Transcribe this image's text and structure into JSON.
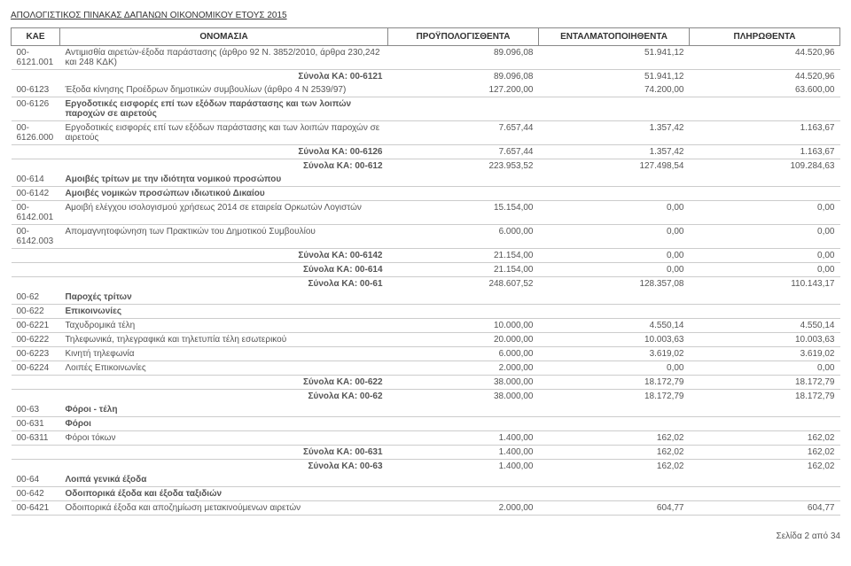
{
  "doc": {
    "title": "ΑΠΟΛΟΓΙΣΤΙΚΟΣ ΠΙΝΑΚΑΣ ΔΑΠΑΝΩΝ ΟΙΚΟΝΟΜΙΚΟΥ ΕΤΟΥΣ 2015",
    "footer": "Σελίδα 2 από 34"
  },
  "columns": {
    "kae": "ΚΑΕ",
    "name": "ΟΝΟΜΑΣΙΑ",
    "budget": "ΠΡΟΫΠΟΛΟΓΙΣΘΕΝΤΑ",
    "committed": "ΕΝΤΑΛΜΑΤΟΠΟΙΗΘΕΝΤΑ",
    "paid": "ΠΛΗΡΩΘΕΝΤΑ"
  },
  "labels": {
    "subtotal_prefix": "Σύνολα ΚΑ: "
  },
  "rows": [
    {
      "type": "line",
      "kae": "00-6121.001",
      "name": "Αντιμισθία αιρετών-έξοδα παράστασης (άρθρο 92 Ν. 3852/2010, άρθρα 230,242 και 248 ΚΔΚ)",
      "c1": "89.096,08",
      "c2": "51.941,12",
      "c3": "44.520,96"
    },
    {
      "type": "subtotal",
      "code": "00-6121",
      "c1": "89.096,08",
      "c2": "51.941,12",
      "c3": "44.520,96"
    },
    {
      "type": "line",
      "kae": "00-6123",
      "name": "Έξοδα κίνησης Προέδρων δημοτικών συμβουλίων (άρθρο 4 Ν 2539/97)",
      "c1": "127.200,00",
      "c2": "74.200,00",
      "c3": "63.600,00"
    },
    {
      "type": "line",
      "kae": "00-6126",
      "name": "Εργοδοτικές εισφορές επί των εξόδων παράστασης και των λοιπών παροχών σε αιρετούς",
      "bold": true
    },
    {
      "type": "line",
      "kae": "00-6126.000",
      "name": "Εργοδοτικές εισφορές επί των εξόδων παράστασης και των λοιπών παροχών σε αιρετούς",
      "c1": "7.657,44",
      "c2": "1.357,42",
      "c3": "1.163,67"
    },
    {
      "type": "subtotal",
      "code": "00-6126",
      "c1": "7.657,44",
      "c2": "1.357,42",
      "c3": "1.163,67"
    },
    {
      "type": "subtotal",
      "code": "00-612",
      "c1": "223.953,52",
      "c2": "127.498,54",
      "c3": "109.284,63"
    },
    {
      "type": "line",
      "kae": "00-614",
      "name": "Αμοιβές τρίτων με την ιδιότητα νομικού προσώπου",
      "bold": true
    },
    {
      "type": "line",
      "kae": "00-6142",
      "name": "Αμοιβές νομικών προσώπων ιδιωτικού Δικαίου",
      "bold": true
    },
    {
      "type": "line",
      "kae": "00-6142.001",
      "name": "Αμοιβή ελέγχου ισολογισμού χρήσεως 2014 σε εταιρεία Ορκωτών Λογιστών",
      "c1": "15.154,00",
      "c2": "0,00",
      "c3": "0,00"
    },
    {
      "type": "line",
      "kae": "00-6142.003",
      "name": "Απομαγνητοφώνηση των Πρακτικών του Δημοτικού Συμβουλίου",
      "c1": "6.000,00",
      "c2": "0,00",
      "c3": "0,00"
    },
    {
      "type": "subtotal",
      "code": "00-6142",
      "c1": "21.154,00",
      "c2": "0,00",
      "c3": "0,00"
    },
    {
      "type": "subtotal",
      "code": "00-614",
      "c1": "21.154,00",
      "c2": "0,00",
      "c3": "0,00"
    },
    {
      "type": "subtotal",
      "code": "00-61",
      "c1": "248.607,52",
      "c2": "128.357,08",
      "c3": "110.143,17"
    },
    {
      "type": "line",
      "kae": "00-62",
      "name": "Παροχές τρίτων",
      "bold": true
    },
    {
      "type": "line",
      "kae": "00-622",
      "name": "Επικοινωνίες",
      "bold": true
    },
    {
      "type": "line",
      "kae": "00-6221",
      "name": "Ταχυδρομικά τέλη",
      "c1": "10.000,00",
      "c2": "4.550,14",
      "c3": "4.550,14"
    },
    {
      "type": "line",
      "kae": "00-6222",
      "name": "Τηλεφωνικά, τηλεγραφικά και τηλετυπία τέλη εσωτερικού",
      "c1": "20.000,00",
      "c2": "10.003,63",
      "c3": "10.003,63"
    },
    {
      "type": "line",
      "kae": "00-6223",
      "name": "Κινητή τηλεφωνία",
      "c1": "6.000,00",
      "c2": "3.619,02",
      "c3": "3.619,02"
    },
    {
      "type": "line",
      "kae": "00-6224",
      "name": "Λοιπές Επικοινωνίες",
      "c1": "2.000,00",
      "c2": "0,00",
      "c3": "0,00"
    },
    {
      "type": "subtotal",
      "code": "00-622",
      "c1": "38.000,00",
      "c2": "18.172,79",
      "c3": "18.172,79"
    },
    {
      "type": "subtotal",
      "code": "00-62",
      "c1": "38.000,00",
      "c2": "18.172,79",
      "c3": "18.172,79"
    },
    {
      "type": "line",
      "kae": "00-63",
      "name": "Φόροι - τέλη",
      "bold": true
    },
    {
      "type": "line",
      "kae": "00-631",
      "name": "Φόροι",
      "bold": true
    },
    {
      "type": "line",
      "kae": "00-6311",
      "name": "Φόροι τόκων",
      "c1": "1.400,00",
      "c2": "162,02",
      "c3": "162,02"
    },
    {
      "type": "subtotal",
      "code": "00-631",
      "c1": "1.400,00",
      "c2": "162,02",
      "c3": "162,02"
    },
    {
      "type": "subtotal",
      "code": "00-63",
      "c1": "1.400,00",
      "c2": "162,02",
      "c3": "162,02"
    },
    {
      "type": "line",
      "kae": "00-64",
      "name": "Λοιπά γενικά έξοδα",
      "bold": true
    },
    {
      "type": "line",
      "kae": "00-642",
      "name": "Οδοιπορικά έξοδα και έξοδα ταξιδιών",
      "bold": true
    },
    {
      "type": "line",
      "kae": "00-6421",
      "name": "Οδοιπορικά έξοδα και αποζημίωση μετακινούμενων αιρετών",
      "c1": "2.000,00",
      "c2": "604,77",
      "c3": "604,77"
    }
  ]
}
